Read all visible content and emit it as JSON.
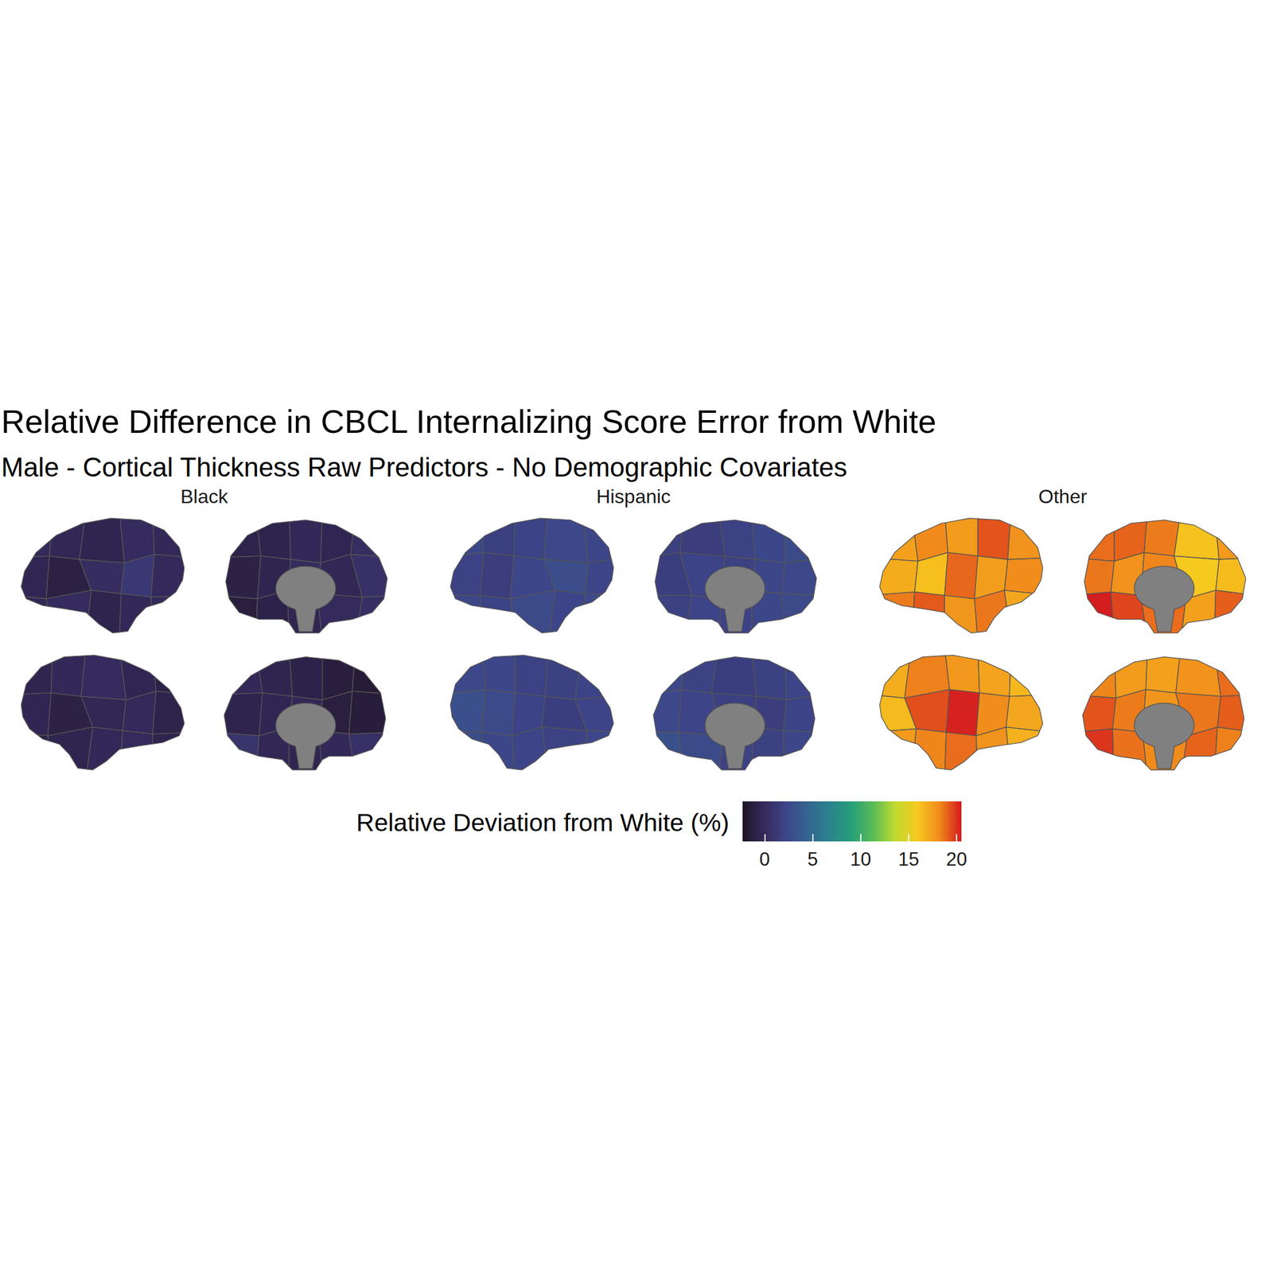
{
  "chart_data": {
    "type": "brain_map",
    "title": "Relative Difference in CBCL Internalizing Score Error from White",
    "subtitle": "Male - Cortical Thickness Raw Predictors - No Demographic Covariates",
    "panels": [
      {
        "name": "Black",
        "views": [
          [
            -0.3,
            0.1,
            -0.6,
            -0.2,
            0.0,
            -0.4,
            -1.0,
            0.2,
            1.2,
            -0.1,
            0.0,
            -0.3,
            -0.5,
            0.1,
            -0.2
          ],
          [
            -1.2,
            -0.8,
            -0.4,
            0.0,
            0.4,
            -0.9,
            -0.5,
            0.1,
            -0.3,
            0.6,
            -0.7,
            -0.6,
            -0.2,
            -0.4,
            0.2
          ],
          [
            -0.8,
            -0.5,
            -0.2,
            0.0,
            -0.6,
            -0.4,
            -0.9,
            -0.3,
            -0.1,
            -0.7,
            -0.5,
            -0.2,
            0.1,
            -0.4,
            -0.8
          ],
          [
            0.8,
            -0.3,
            -0.5,
            -0.2,
            0.5,
            -0.6,
            -0.4,
            -0.3,
            -1.2,
            -1.4,
            -0.2,
            -0.5,
            -0.8,
            -1.3,
            -1.5
          ]
        ]
      },
      {
        "name": "Hispanic",
        "views": [
          [
            2.4,
            2.1,
            2.6,
            2.2,
            2.5,
            2.0,
            1.6,
            2.3,
            2.8,
            2.2,
            2.4,
            1.8,
            2.1,
            2.5,
            2.3
          ],
          [
            1.9,
            2.2,
            2.0,
            2.4,
            2.6,
            1.7,
            2.1,
            1.9,
            2.3,
            2.5,
            1.8,
            1.6,
            2.0,
            2.4,
            2.7
          ],
          [
            2.8,
            2.4,
            2.2,
            2.0,
            2.3,
            3.0,
            2.6,
            2.1,
            1.7,
            2.2,
            2.5,
            2.3,
            2.0,
            1.9,
            2.1
          ],
          [
            3.1,
            2.7,
            2.0,
            1.9,
            2.3,
            2.5,
            2.2,
            1.8,
            1.6,
            2.1,
            2.4,
            2.0,
            1.7,
            1.9,
            2.2
          ]
        ]
      },
      {
        "name": "Other",
        "views": [
          [
            18.5,
            19.2,
            17.8,
            18.6,
            17.2,
            17.0,
            16.3,
            18.9,
            17.5,
            18.1,
            17.4,
            18.2,
            17.6,
            19.3,
            17.9
          ],
          [
            20.4,
            19.6,
            18.8,
            17.4,
            19.1,
            18.6,
            17.9,
            18.3,
            15.9,
            16.4,
            18.8,
            19.0,
            18.5,
            16.2,
            17.6
          ],
          [
            17.6,
            18.3,
            18.8,
            17.9,
            16.8,
            16.5,
            19.4,
            20.3,
            18.1,
            17.2,
            16.9,
            18.4,
            17.7,
            17.3,
            16.6
          ],
          [
            19.9,
            18.7,
            18.2,
            19.0,
            18.4,
            19.3,
            18.5,
            17.8,
            18.6,
            19.1,
            18.3,
            17.6,
            17.4,
            17.9,
            18.8
          ]
        ]
      }
    ],
    "colorbar": {
      "title": "Relative Deviation from White (%)",
      "range": [
        -2.3,
        20.5
      ],
      "ticks": [
        0,
        5,
        10,
        15,
        20
      ]
    }
  }
}
